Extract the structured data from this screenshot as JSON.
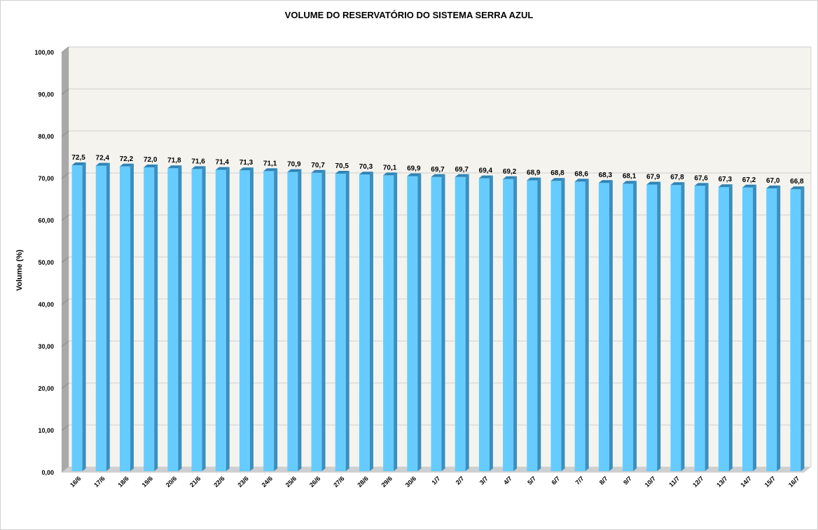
{
  "chart_data": {
    "type": "bar",
    "title": "VOLUME DO RESERVATÓRIO DO SISTEMA SERRA AZUL",
    "xlabel": "",
    "ylabel": "Volume (%)",
    "ylim": [
      0,
      100
    ],
    "yticks": [
      "0,00",
      "10,00",
      "20,00",
      "30,00",
      "40,00",
      "50,00",
      "60,00",
      "70,00",
      "80,00",
      "90,00",
      "100,00"
    ],
    "categories": [
      "16/6",
      "17/6",
      "18/6",
      "19/6",
      "20/6",
      "21/6",
      "22/6",
      "23/6",
      "24/6",
      "25/6",
      "26/6",
      "27/6",
      "28/6",
      "29/6",
      "30/6",
      "1/7",
      "2/7",
      "3/7",
      "4/7",
      "5/7",
      "6/7",
      "7/7",
      "8/7",
      "9/7",
      "10/7",
      "11/7",
      "12/7",
      "13/7",
      "14/7",
      "15/7",
      "16/7"
    ],
    "values": [
      72.5,
      72.4,
      72.2,
      72.0,
      71.8,
      71.6,
      71.4,
      71.3,
      71.1,
      70.9,
      70.7,
      70.5,
      70.3,
      70.1,
      69.9,
      69.7,
      69.7,
      69.4,
      69.2,
      68.9,
      68.8,
      68.6,
      68.3,
      68.1,
      67.9,
      67.8,
      67.6,
      67.3,
      67.2,
      67.0,
      66.8
    ],
    "data_labels": [
      "72,5",
      "72,4",
      "72,2",
      "72,0",
      "71,8",
      "71,6",
      "71,4",
      "71,3",
      "71,1",
      "70,9",
      "70,7",
      "70,5",
      "70,3",
      "70,1",
      "69,9",
      "69,7",
      "69,7",
      "69,4",
      "69,2",
      "68,9",
      "68,8",
      "68,6",
      "68,3",
      "68,1",
      "67,9",
      "67,8",
      "67,6",
      "67,3",
      "67,2",
      "67,0",
      "66,8"
    ],
    "grid": true,
    "legend": "none",
    "colors": {
      "bar_front": "#66ccff",
      "bar_side": "#3a8fbf",
      "bar_top": "#2f84b5",
      "plot_back": "#f4f3ee",
      "plot_wall": "#a9a9a9",
      "plot_floor": "#cfcfcf",
      "grid": "#cfcfcf"
    }
  }
}
